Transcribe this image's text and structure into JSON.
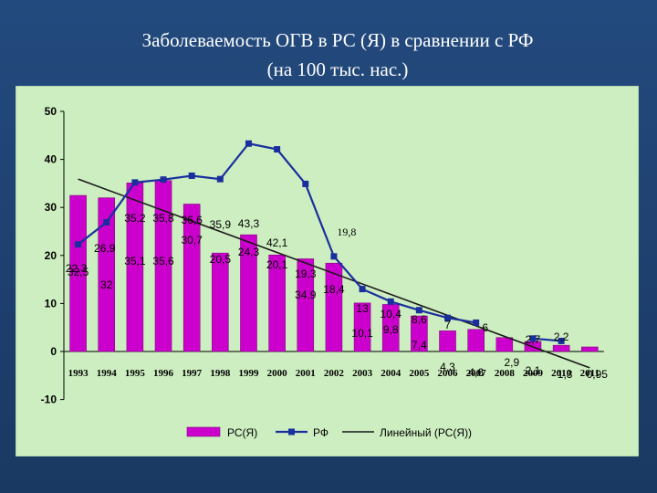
{
  "title": {
    "line1": "Заболеваемость ОГВ в РС (Я) в сравнении с РФ",
    "line2": "(на 100 тыс. нас.)"
  },
  "chart_data": {
    "type": "bar",
    "categories": [
      "1993",
      "1994",
      "1995",
      "1996",
      "1997",
      "1998",
      "1999",
      "2000",
      "2001",
      "2002",
      "2003",
      "2004",
      "2005",
      "2006",
      "2007",
      "2008",
      "2009",
      "2010",
      "2011"
    ],
    "ylim": [
      -10,
      50
    ],
    "yticks": [
      "-10",
      "0",
      "10",
      "20",
      "30",
      "40",
      "50"
    ],
    "grid": false,
    "legend_position": "bottom",
    "series": [
      {
        "name": "РС(Я)",
        "type": "bar",
        "color": "#cc00cc",
        "values": [
          32.5,
          32,
          35.1,
          35.6,
          30.7,
          20.5,
          24.3,
          20.1,
          19.3,
          18.4,
          10.1,
          9.8,
          7.4,
          4.3,
          4.6,
          2.9,
          2.1,
          1.3,
          0.95
        ],
        "labels": [
          "32,5",
          "32",
          "35,1",
          "35,6",
          "30,7",
          "20,5",
          "24,3",
          "20,1",
          "19,3",
          "18,4",
          "10,1",
          "9,8",
          "7,4",
          "4,3",
          "4,6",
          "2,9",
          "2,1",
          "1,3",
          "0,95"
        ]
      },
      {
        "name": "РФ",
        "type": "line",
        "color": "#1a2f9e",
        "values": [
          22.3,
          26.9,
          35.2,
          35.8,
          36.6,
          35.9,
          43.3,
          42.1,
          34.9,
          19.8,
          13,
          10.4,
          8.6,
          7,
          6,
          null,
          2.7,
          2.2,
          null
        ],
        "labels": [
          "22,3",
          "26,9",
          "35,2",
          "35,8",
          "36,6",
          "35,9",
          "43,3",
          "42,1",
          "34,9",
          "19,8",
          "13",
          "10,4",
          "8,6",
          "7",
          "6",
          "",
          "2,7",
          "2,2",
          ""
        ]
      },
      {
        "name": "Линейный (РС(Я))",
        "type": "trendline",
        "color": "#1a1a1a",
        "start": 35.9,
        "end": -3.4
      }
    ],
    "legend": [
      "РС(Я)",
      "РФ",
      "Линейный (РС(Я))"
    ]
  }
}
